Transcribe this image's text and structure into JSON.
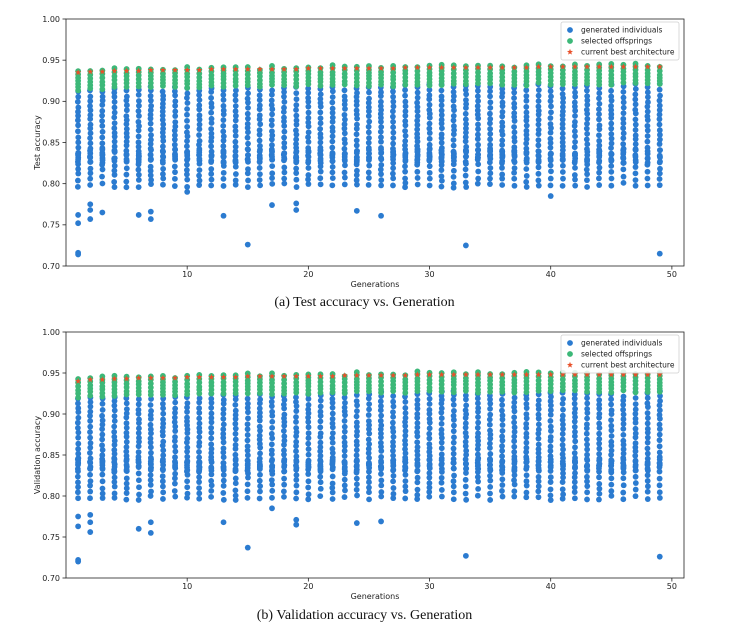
{
  "chart_data": [
    {
      "type": "scatter",
      "caption": "(a) Test accuracy vs. Generation",
      "xlabel": "Generations",
      "ylabel": "Test accuracy",
      "xlim": [
        0,
        51
      ],
      "ylim": [
        0.7,
        1.0
      ],
      "xticks": [
        10,
        20,
        30,
        40,
        50
      ],
      "yticks": [
        0.7,
        0.75,
        0.8,
        0.85,
        0.9,
        0.95,
        1.0
      ],
      "legend_position": "top-right",
      "series": [
        {
          "name": "generated individuals",
          "color": "#2b7bd0",
          "marker": "circle"
        },
        {
          "name": "selected offsprings",
          "color": "#3cb878",
          "marker": "circle"
        },
        {
          "name": "current best architecture",
          "color": "#e8502a",
          "marker": "star"
        }
      ],
      "generations": [
        1,
        2,
        3,
        4,
        5,
        6,
        7,
        8,
        9,
        10,
        11,
        12,
        13,
        14,
        15,
        16,
        17,
        18,
        19,
        20,
        21,
        22,
        23,
        24,
        25,
        26,
        27,
        28,
        29,
        30,
        31,
        32,
        33,
        34,
        35,
        36,
        37,
        38,
        39,
        40,
        41,
        42,
        43,
        44,
        45,
        46,
        47,
        48,
        49
      ],
      "best_accuracy": [
        0.935,
        0.936,
        0.936,
        0.937,
        0.937,
        0.937,
        0.938,
        0.938,
        0.938,
        0.938,
        0.938,
        0.939,
        0.939,
        0.939,
        0.939,
        0.939,
        0.939,
        0.939,
        0.939,
        0.94,
        0.94,
        0.94,
        0.94,
        0.94,
        0.94,
        0.94,
        0.94,
        0.941,
        0.941,
        0.941,
        0.941,
        0.941,
        0.941,
        0.941,
        0.941,
        0.941,
        0.941,
        0.941,
        0.942,
        0.942,
        0.942,
        0.942,
        0.942,
        0.942,
        0.942,
        0.942,
        0.942,
        0.942,
        0.942
      ],
      "offspring_range": [
        0.915,
        0.945
      ],
      "individual_cluster_top": [
        0.825,
        0.93
      ],
      "individual_cluster_bottom": [
        0.795,
        0.842
      ],
      "outliers": [
        [
          1,
          0.716
        ],
        [
          1,
          0.714
        ],
        [
          1,
          0.752
        ],
        [
          1,
          0.762
        ],
        [
          2,
          0.768
        ],
        [
          2,
          0.775
        ],
        [
          2,
          0.757
        ],
        [
          3,
          0.765
        ],
        [
          6,
          0.762
        ],
        [
          7,
          0.766
        ],
        [
          7,
          0.757
        ],
        [
          10,
          0.79
        ],
        [
          13,
          0.761
        ],
        [
          15,
          0.726
        ],
        [
          17,
          0.774
        ],
        [
          19,
          0.768
        ],
        [
          19,
          0.776
        ],
        [
          24,
          0.767
        ],
        [
          26,
          0.761
        ],
        [
          33,
          0.725
        ],
        [
          40,
          0.785
        ],
        [
          49,
          0.715
        ]
      ]
    },
    {
      "type": "scatter",
      "caption": "(b) Validation accuracy vs. Generation",
      "xlabel": "Generations",
      "ylabel": "Validation accuracy",
      "xlim": [
        0,
        51
      ],
      "ylim": [
        0.7,
        1.0
      ],
      "xticks": [
        10,
        20,
        30,
        40,
        50
      ],
      "yticks": [
        0.7,
        0.75,
        0.8,
        0.85,
        0.9,
        0.95,
        1.0
      ],
      "legend_position": "top-right",
      "series": [
        {
          "name": "generated individuals",
          "color": "#2b7bd0",
          "marker": "circle"
        },
        {
          "name": "selected offsprings",
          "color": "#3cb878",
          "marker": "circle"
        },
        {
          "name": "current best architecture",
          "color": "#e8502a",
          "marker": "star"
        }
      ],
      "generations": [
        1,
        2,
        3,
        4,
        5,
        6,
        7,
        8,
        9,
        10,
        11,
        12,
        13,
        14,
        15,
        16,
        17,
        18,
        19,
        20,
        21,
        22,
        23,
        24,
        25,
        26,
        27,
        28,
        29,
        30,
        31,
        32,
        33,
        34,
        35,
        36,
        37,
        38,
        39,
        40,
        41,
        42,
        43,
        44,
        45,
        46,
        47,
        48,
        49
      ],
      "best_accuracy": [
        0.94,
        0.942,
        0.942,
        0.943,
        0.943,
        0.944,
        0.944,
        0.944,
        0.944,
        0.945,
        0.945,
        0.945,
        0.945,
        0.945,
        0.946,
        0.946,
        0.946,
        0.946,
        0.946,
        0.946,
        0.946,
        0.946,
        0.947,
        0.947,
        0.947,
        0.947,
        0.947,
        0.947,
        0.948,
        0.948,
        0.948,
        0.948,
        0.948,
        0.948,
        0.948,
        0.948,
        0.948,
        0.948,
        0.948,
        0.948,
        0.948,
        0.948,
        0.948,
        0.948,
        0.948,
        0.948,
        0.948,
        0.948,
        0.948
      ],
      "offspring_range": [
        0.922,
        0.952
      ],
      "individual_cluster_top": [
        0.83,
        0.935
      ],
      "individual_cluster_bottom": [
        0.795,
        0.845
      ],
      "outliers": [
        [
          1,
          0.72
        ],
        [
          1,
          0.722
        ],
        [
          1,
          0.763
        ],
        [
          1,
          0.775
        ],
        [
          2,
          0.768
        ],
        [
          2,
          0.777
        ],
        [
          2,
          0.756
        ],
        [
          6,
          0.76
        ],
        [
          7,
          0.768
        ],
        [
          7,
          0.755
        ],
        [
          13,
          0.768
        ],
        [
          15,
          0.737
        ],
        [
          17,
          0.785
        ],
        [
          19,
          0.771
        ],
        [
          19,
          0.765
        ],
        [
          24,
          0.767
        ],
        [
          26,
          0.769
        ],
        [
          33,
          0.727
        ],
        [
          40,
          0.795
        ],
        [
          49,
          0.726
        ]
      ]
    }
  ]
}
